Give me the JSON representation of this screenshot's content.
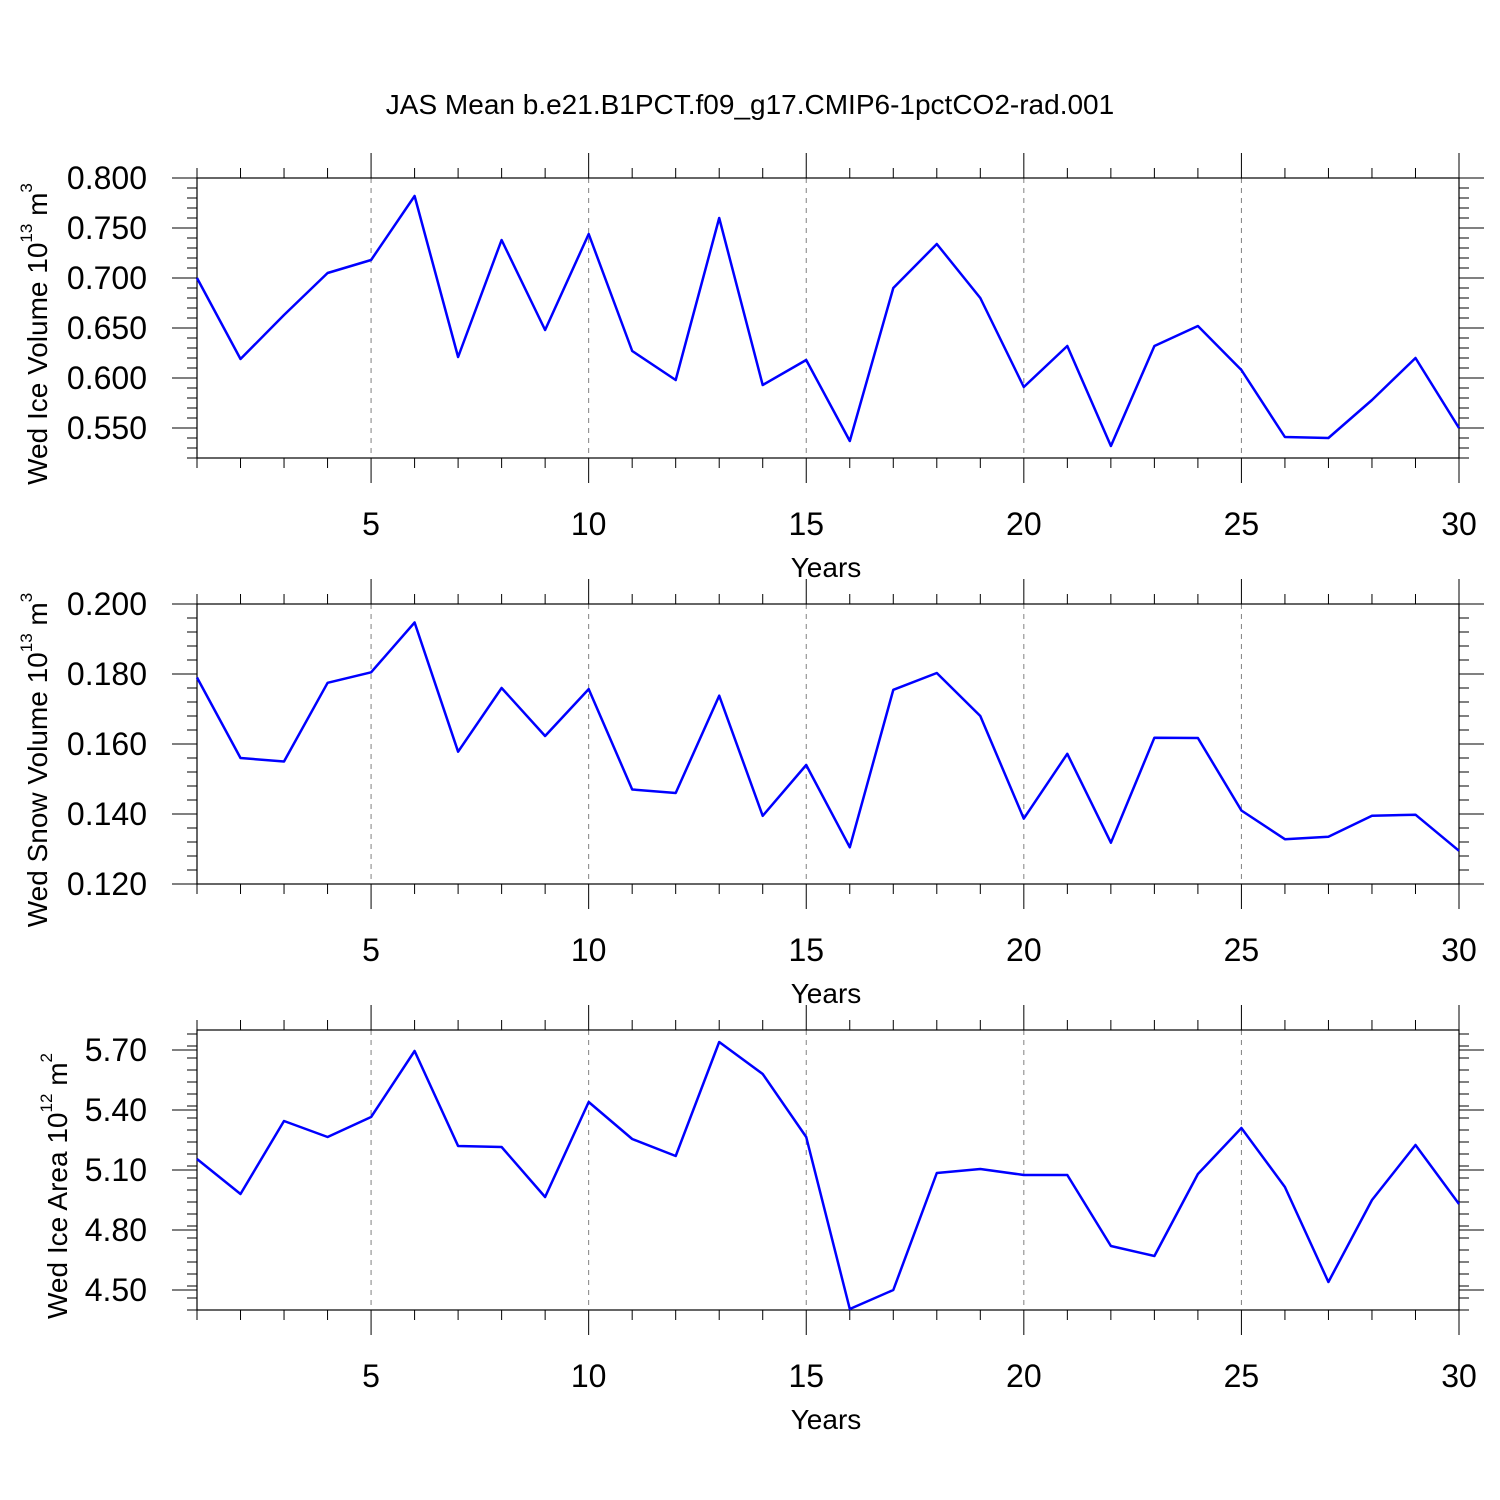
{
  "figure": {
    "title": "JAS Mean b.e21.B1PCT.f09_g17.CMIP6-1pctCO2-rad.001"
  },
  "colors": {
    "series": "#0000ff",
    "axes": "#000000",
    "grid": "#808080"
  },
  "chart_data": [
    {
      "type": "line",
      "ylabel_main": "Wed Ice Volume 10",
      "ylabel_exp": "13",
      "ylabel_unit": " m",
      "ylabel_unit_exp": "3",
      "xlabel": "Years",
      "xlim": [
        1,
        30
      ],
      "ylim": [
        0.52,
        0.8
      ],
      "xticks": [
        5,
        10,
        15,
        20,
        25,
        30
      ],
      "xtick_labels": [
        "5",
        "10",
        "15",
        "20",
        "25",
        "30"
      ],
      "yticks": [
        0.55,
        0.6,
        0.65,
        0.7,
        0.75,
        0.8
      ],
      "ytick_labels": [
        "0.550",
        "0.600",
        "0.650",
        "0.700",
        "0.750",
        "0.800"
      ],
      "grid": "vertical dashed at major x ticks",
      "x": [
        1,
        2,
        3,
        4,
        5,
        6,
        7,
        8,
        9,
        10,
        11,
        12,
        13,
        14,
        15,
        16,
        17,
        18,
        19,
        20,
        21,
        22,
        23,
        24,
        25,
        26,
        27,
        28,
        29,
        30
      ],
      "values": [
        0.7,
        0.619,
        0.663,
        0.705,
        0.718,
        0.782,
        0.621,
        0.738,
        0.648,
        0.744,
        0.627,
        0.598,
        0.76,
        0.593,
        0.618,
        0.537,
        0.69,
        0.734,
        0.68,
        0.591,
        0.632,
        0.532,
        0.632,
        0.652,
        0.608,
        0.541,
        0.54,
        0.578,
        0.62,
        0.55
      ]
    },
    {
      "type": "line",
      "ylabel_main": "Wed Snow Volume 10",
      "ylabel_exp": "13",
      "ylabel_unit": " m",
      "ylabel_unit_exp": "3",
      "xlabel": "Years",
      "xlim": [
        1,
        30
      ],
      "ylim": [
        0.12,
        0.2
      ],
      "xticks": [
        5,
        10,
        15,
        20,
        25,
        30
      ],
      "xtick_labels": [
        "5",
        "10",
        "15",
        "20",
        "25",
        "30"
      ],
      "yticks": [
        0.12,
        0.14,
        0.16,
        0.18,
        0.2
      ],
      "ytick_labels": [
        "0.120",
        "0.140",
        "0.160",
        "0.180",
        "0.200"
      ],
      "grid": "vertical dashed at major x ticks",
      "x": [
        1,
        2,
        3,
        4,
        5,
        6,
        7,
        8,
        9,
        10,
        11,
        12,
        13,
        14,
        15,
        16,
        17,
        18,
        19,
        20,
        21,
        22,
        23,
        24,
        25,
        26,
        27,
        28,
        29,
        30
      ],
      "values": [
        0.179,
        0.156,
        0.155,
        0.1775,
        0.1805,
        0.1947,
        0.1578,
        0.176,
        0.1623,
        0.1757,
        0.147,
        0.146,
        0.1738,
        0.1395,
        0.154,
        0.1305,
        0.1755,
        0.1803,
        0.168,
        0.1387,
        0.1572,
        0.1318,
        0.1618,
        0.1617,
        0.141,
        0.1328,
        0.1335,
        0.1395,
        0.1398,
        0.1295
      ]
    },
    {
      "type": "line",
      "ylabel_main": "Wed Ice Area 10",
      "ylabel_exp": "12",
      "ylabel_unit": " m",
      "ylabel_unit_exp": "2",
      "xlabel": "Years",
      "xlim": [
        1,
        30
      ],
      "ylim": [
        4.4,
        5.8
      ],
      "xticks": [
        5,
        10,
        15,
        20,
        25,
        30
      ],
      "xtick_labels": [
        "5",
        "10",
        "15",
        "20",
        "25",
        "30"
      ],
      "yticks": [
        4.5,
        4.8,
        5.1,
        5.4,
        5.7
      ],
      "ytick_labels": [
        "4.50",
        "4.80",
        "5.10",
        "5.40",
        "5.70"
      ],
      "grid": "vertical dashed at major x ticks",
      "x": [
        1,
        2,
        3,
        4,
        5,
        6,
        7,
        8,
        9,
        10,
        11,
        12,
        13,
        14,
        15,
        16,
        17,
        18,
        19,
        20,
        21,
        22,
        23,
        24,
        25,
        26,
        27,
        28,
        29,
        30
      ],
      "values": [
        5.155,
        4.98,
        5.345,
        5.265,
        5.365,
        5.695,
        5.22,
        5.215,
        4.965,
        5.44,
        5.255,
        5.17,
        5.74,
        5.58,
        5.265,
        4.405,
        4.5,
        5.085,
        5.105,
        5.075,
        5.075,
        4.72,
        4.67,
        5.08,
        5.31,
        5.015,
        4.54,
        4.95,
        5.225,
        4.93
      ]
    }
  ]
}
